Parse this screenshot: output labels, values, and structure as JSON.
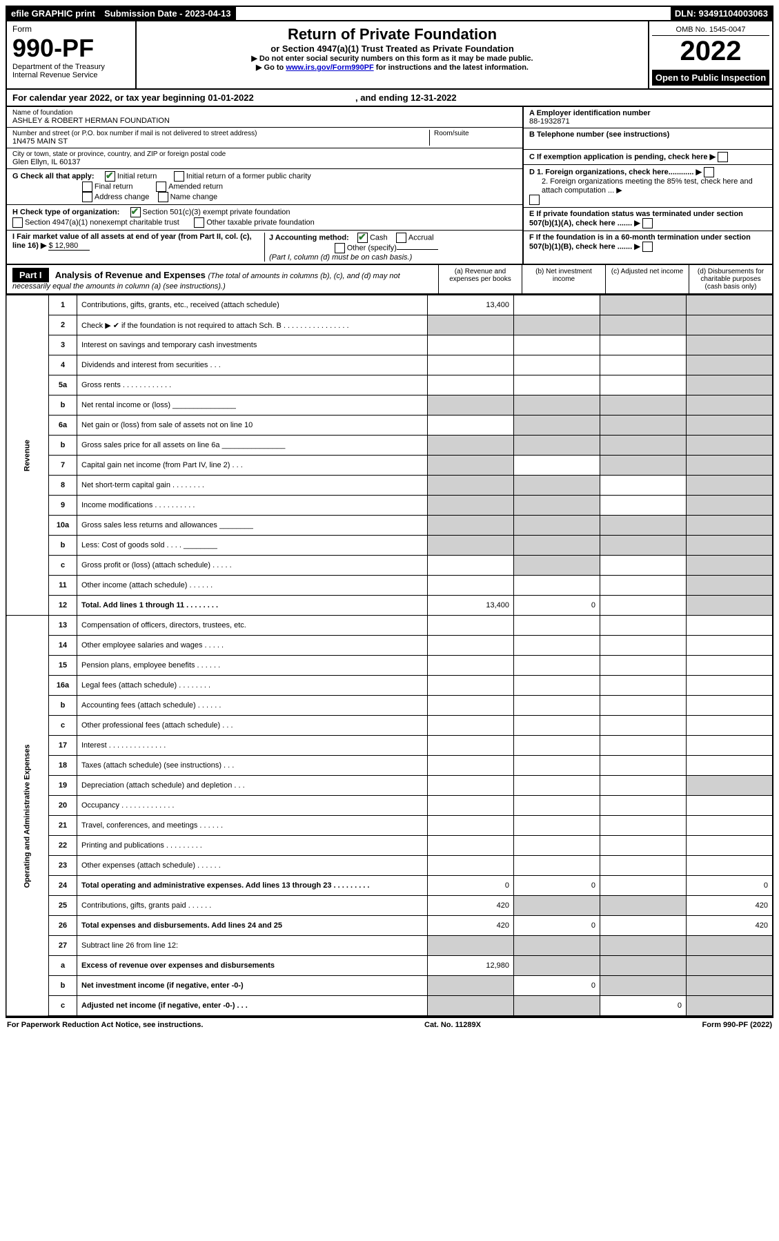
{
  "header": {
    "efile": "efile GRAPHIC print",
    "submission_label": "Submission Date - 2023-04-13",
    "dln": "DLN: 93491104003063"
  },
  "top": {
    "form_word": "Form",
    "form_no": "990-PF",
    "dept": "Department of the Treasury",
    "irs": "Internal Revenue Service",
    "title": "Return of Private Foundation",
    "subtitle": "or Section 4947(a)(1) Trust Treated as Private Foundation",
    "instr1": "▶ Do not enter social security numbers on this form as it may be made public.",
    "instr2": "▶ Go to ",
    "instr2_link": "www.irs.gov/Form990PF",
    "instr2_tail": " for instructions and the latest information.",
    "omb": "OMB No. 1545-0047",
    "year": "2022",
    "open": "Open to Public Inspection"
  },
  "cal": {
    "text_a": "For calendar year 2022, or tax year beginning 01-01-2022",
    "text_b": ", and ending 12-31-2022"
  },
  "info": {
    "name_label": "Name of foundation",
    "name": "ASHLEY & ROBERT HERMAN FOUNDATION",
    "addr_label": "Number and street (or P.O. box number if mail is not delivered to street address)",
    "addr": "1N475 MAIN ST",
    "room_label": "Room/suite",
    "city_label": "City or town, state or province, country, and ZIP or foreign postal code",
    "city": "Glen Ellyn, IL  60137",
    "g_label": "G Check all that apply:",
    "g_initial": "Initial return",
    "g_final": "Final return",
    "g_addr": "Address change",
    "g_initial_former": "Initial return of a former public charity",
    "g_amended": "Amended return",
    "g_name": "Name change",
    "h_label": "H Check type of organization:",
    "h_501c3": "Section 501(c)(3) exempt private foundation",
    "h_4947": "Section 4947(a)(1) nonexempt charitable trust",
    "h_other": "Other taxable private foundation",
    "i_label": "I Fair market value of all assets at end of year (from Part II, col. (c), line 16) ▶",
    "i_val": "$  12,980",
    "j_label": "J Accounting method:",
    "j_cash": "Cash",
    "j_accrual": "Accrual",
    "j_other": "Other (specify)",
    "j_note": "(Part I, column (d) must be on cash basis.)",
    "a_label": "A Employer identification number",
    "a_val": "88-1932871",
    "b_label": "B Telephone number (see instructions)",
    "c_label": "C If exemption application is pending, check here ▶",
    "d1_label": "D 1. Foreign organizations, check here............ ▶",
    "d2_label": "2. Foreign organizations meeting the 85% test, check here and attach computation ... ▶",
    "e_label": "E  If private foundation status was terminated under section 507(b)(1)(A), check here ....... ▶",
    "f_label": "F  If the foundation is in a 60-month termination under section 507(b)(1)(B), check here ....... ▶"
  },
  "part1": {
    "label": "Part I",
    "title": "Analysis of Revenue and Expenses ",
    "note": "(The total of amounts in columns (b), (c), and (d) may not necessarily equal the amounts in column (a) (see instructions).)",
    "col_a": "(a)   Revenue and expenses per books",
    "col_b": "(b)   Net investment income",
    "col_c": "(c)   Adjusted net income",
    "col_d": "(d)   Disbursements for charitable purposes (cash basis only)"
  },
  "side": {
    "revenue": "Revenue",
    "expenses": "Operating and Administrative Expenses"
  },
  "rows": [
    {
      "no": "1",
      "desc": "Contributions, gifts, grants, etc., received (attach schedule)",
      "a": "13,400",
      "b": "",
      "c": "",
      "d": "",
      "c_shade": true,
      "d_shade": true
    },
    {
      "no": "2",
      "desc": "Check ▶ ✔ if the foundation is not required to attach Sch. B   .  .  .  .  .  .  .  .  .  .  .  .  .  .  .  .",
      "nobox": true
    },
    {
      "no": "3",
      "desc": "Interest on savings and temporary cash investments",
      "a": "",
      "b": "",
      "c": "",
      "d": "",
      "d_shade": true
    },
    {
      "no": "4",
      "desc": "Dividends and interest from securities   .  .  .",
      "a": "",
      "b": "",
      "c": "",
      "d": "",
      "d_shade": true
    },
    {
      "no": "5a",
      "desc": "Gross rents   .  .  .  .  .  .  .  .  .  .  .  .",
      "a": "",
      "b": "",
      "c": "",
      "d": "",
      "d_shade": true
    },
    {
      "no": "b",
      "desc": "Net rental income or (loss)  _______________",
      "nobox": true
    },
    {
      "no": "6a",
      "desc": "Net gain or (loss) from sale of assets not on line 10",
      "a": "",
      "b": "",
      "c": "",
      "d": "",
      "b_shade": true,
      "c_shade": true,
      "d_shade": true
    },
    {
      "no": "b",
      "desc": "Gross sales price for all assets on line 6a _______________",
      "nobox": true
    },
    {
      "no": "7",
      "desc": "Capital gain net income (from Part IV, line 2)   .  .  .",
      "a": "",
      "b": "",
      "c": "",
      "d": "",
      "a_shade": true,
      "c_shade": true,
      "d_shade": true
    },
    {
      "no": "8",
      "desc": "Net short-term capital gain  .  .  .  .  .  .  .  .",
      "a": "",
      "b": "",
      "c": "",
      "d": "",
      "a_shade": true,
      "b_shade": true,
      "d_shade": true
    },
    {
      "no": "9",
      "desc": "Income modifications  .  .  .  .  .  .  .  .  .  .",
      "a": "",
      "b": "",
      "c": "",
      "d": "",
      "a_shade": true,
      "b_shade": true,
      "d_shade": true
    },
    {
      "no": "10a",
      "desc": "Gross sales less returns and allowances  ________",
      "nobox": true
    },
    {
      "no": "b",
      "desc": "Less: Cost of goods sold   .  .  .  .  ________",
      "nobox": true
    },
    {
      "no": "c",
      "desc": "Gross profit or (loss) (attach schedule)   .  .  .  .  .",
      "a": "",
      "b": "",
      "c": "",
      "d": "",
      "b_shade": true,
      "d_shade": true
    },
    {
      "no": "11",
      "desc": "Other income (attach schedule)   .  .  .  .  .  .",
      "a": "",
      "b": "",
      "c": "",
      "d": "",
      "d_shade": true
    },
    {
      "no": "12",
      "desc": "Total. Add lines 1 through 11  .  .  .  .  .  .  .  .",
      "a": "13,400",
      "b": "0",
      "c": "",
      "d": "",
      "bold": true,
      "d_shade": true
    }
  ],
  "exp_rows": [
    {
      "no": "13",
      "desc": "Compensation of officers, directors, trustees, etc.",
      "a": "",
      "b": "",
      "c": "",
      "d": ""
    },
    {
      "no": "14",
      "desc": "Other employee salaries and wages  .  .  .  .  .",
      "a": "",
      "b": "",
      "c": "",
      "d": ""
    },
    {
      "no": "15",
      "desc": "Pension plans, employee benefits  .  .  .  .  .  .",
      "a": "",
      "b": "",
      "c": "",
      "d": ""
    },
    {
      "no": "16a",
      "desc": "Legal fees (attach schedule)  .  .  .  .  .  .  .  .",
      "a": "",
      "b": "",
      "c": "",
      "d": ""
    },
    {
      "no": "b",
      "desc": "Accounting fees (attach schedule)  .  .  .  .  .  .",
      "a": "",
      "b": "",
      "c": "",
      "d": ""
    },
    {
      "no": "c",
      "desc": "Other professional fees (attach schedule)   .  .  .",
      "a": "",
      "b": "",
      "c": "",
      "d": ""
    },
    {
      "no": "17",
      "desc": "Interest  .  .  .  .  .  .  .  .  .  .  .  .  .  .",
      "a": "",
      "b": "",
      "c": "",
      "d": ""
    },
    {
      "no": "18",
      "desc": "Taxes (attach schedule) (see instructions)   .  .  .",
      "a": "",
      "b": "",
      "c": "",
      "d": ""
    },
    {
      "no": "19",
      "desc": "Depreciation (attach schedule) and depletion   .  .  .",
      "a": "",
      "b": "",
      "c": "",
      "d": "",
      "d_shade": true
    },
    {
      "no": "20",
      "desc": "Occupancy  .  .  .  .  .  .  .  .  .  .  .  .  .",
      "a": "",
      "b": "",
      "c": "",
      "d": ""
    },
    {
      "no": "21",
      "desc": "Travel, conferences, and meetings  .  .  .  .  .  .",
      "a": "",
      "b": "",
      "c": "",
      "d": ""
    },
    {
      "no": "22",
      "desc": "Printing and publications  .  .  .  .  .  .  .  .  .",
      "a": "",
      "b": "",
      "c": "",
      "d": ""
    },
    {
      "no": "23",
      "desc": "Other expenses (attach schedule)  .  .  .  .  .  .",
      "a": "",
      "b": "",
      "c": "",
      "d": ""
    },
    {
      "no": "24",
      "desc": "Total operating and administrative expenses. Add lines 13 through 23  .  .  .  .  .  .  .  .  .",
      "a": "0",
      "b": "0",
      "c": "",
      "d": "0",
      "bold": true
    },
    {
      "no": "25",
      "desc": "Contributions, gifts, grants paid   .  .  .  .  .  .",
      "a": "420",
      "b": "",
      "c": "",
      "d": "420",
      "b_shade": true,
      "c_shade": true
    },
    {
      "no": "26",
      "desc": "Total expenses and disbursements. Add lines 24 and 25",
      "a": "420",
      "b": "0",
      "c": "",
      "d": "420",
      "bold": true
    },
    {
      "no": "27",
      "desc": "Subtract line 26 from line 12:",
      "nobox": true
    },
    {
      "no": "a",
      "desc": "Excess of revenue over expenses and disbursements",
      "a": "12,980",
      "b": "",
      "c": "",
      "d": "",
      "bold": true,
      "b_shade": true,
      "c_shade": true,
      "d_shade": true
    },
    {
      "no": "b",
      "desc": "Net investment income (if negative, enter -0-)",
      "a": "",
      "b": "0",
      "c": "",
      "d": "",
      "bold": true,
      "a_shade": true,
      "c_shade": true,
      "d_shade": true
    },
    {
      "no": "c",
      "desc": "Adjusted net income (if negative, enter -0-)   .  .  .",
      "a": "",
      "b": "",
      "c": "0",
      "d": "",
      "bold": true,
      "a_shade": true,
      "b_shade": true,
      "d_shade": true
    }
  ],
  "footer": {
    "left": "For Paperwork Reduction Act Notice, see instructions.",
    "center": "Cat. No. 11289X",
    "right": "Form 990-PF (2022)"
  }
}
